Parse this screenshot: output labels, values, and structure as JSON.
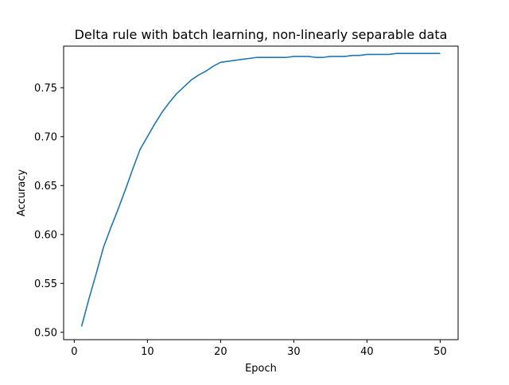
{
  "chart_data": {
    "type": "line",
    "title": "Delta rule with batch learning, non-linearly separable data",
    "xlabel": "Epoch",
    "ylabel": "Accuracy",
    "xlim": [
      -1.45,
      52.45
    ],
    "ylim": [
      0.4925,
      0.7925
    ],
    "xticks": [
      0,
      10,
      20,
      30,
      40,
      50
    ],
    "xtick_labels": [
      "0",
      "10",
      "20",
      "30",
      "40",
      "50"
    ],
    "yticks": [
      0.5,
      0.55,
      0.6,
      0.65,
      0.7,
      0.75
    ],
    "ytick_labels": [
      "0.50",
      "0.55",
      "0.60",
      "0.65",
      "0.70",
      "0.75"
    ],
    "grid": false,
    "series": [
      {
        "color": "#1f77b4",
        "x": [
          1,
          2,
          3,
          4,
          5,
          6,
          7,
          8,
          9,
          10,
          11,
          12,
          13,
          14,
          15,
          16,
          17,
          18,
          19,
          20,
          21,
          22,
          23,
          24,
          25,
          26,
          27,
          28,
          29,
          30,
          31,
          32,
          33,
          34,
          35,
          36,
          37,
          38,
          39,
          40,
          41,
          42,
          43,
          44,
          45,
          46,
          47,
          48,
          49,
          50
        ],
        "y": [
          0.506,
          0.534,
          0.56,
          0.587,
          0.607,
          0.626,
          0.646,
          0.667,
          0.687,
          0.7,
          0.713,
          0.725,
          0.735,
          0.744,
          0.751,
          0.758,
          0.763,
          0.767,
          0.772,
          0.776,
          0.777,
          0.778,
          0.779,
          0.78,
          0.781,
          0.781,
          0.781,
          0.781,
          0.781,
          0.782,
          0.782,
          0.782,
          0.781,
          0.781,
          0.782,
          0.782,
          0.782,
          0.783,
          0.783,
          0.784,
          0.784,
          0.784,
          0.784,
          0.785,
          0.785,
          0.785,
          0.785,
          0.785,
          0.785,
          0.785
        ]
      }
    ]
  }
}
